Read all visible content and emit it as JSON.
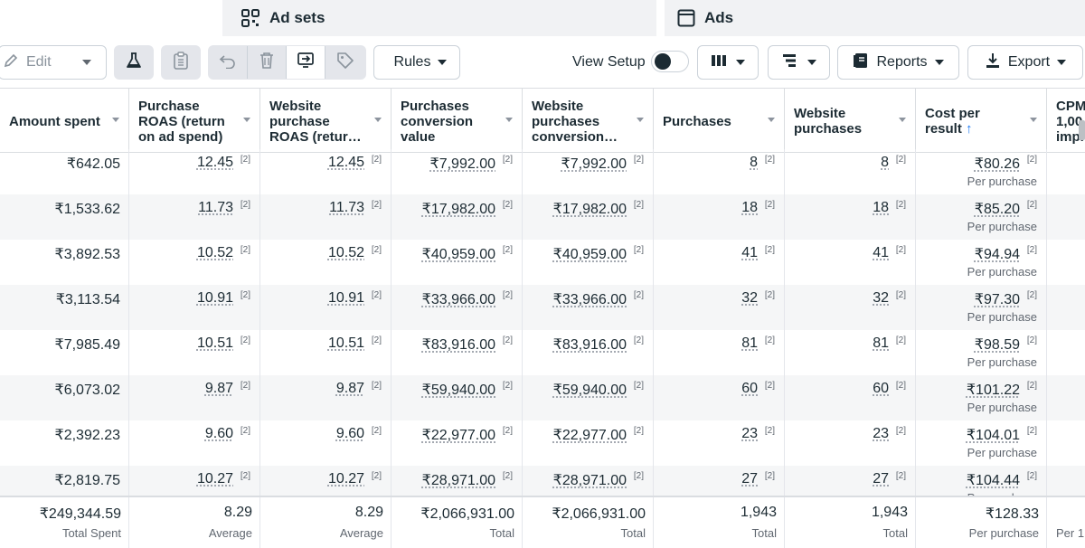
{
  "tabs": [
    {
      "label": "Ad sets",
      "icon": "grid-icon"
    },
    {
      "label": "Ads",
      "icon": "ad-window-icon"
    }
  ],
  "toolbar": {
    "edit_label": "Edit",
    "rules_label": "Rules",
    "view_setup_label": "View Setup",
    "view_setup_on": false,
    "reports_label": "Reports",
    "export_label": "Export"
  },
  "columns": [
    {
      "label": "Amount spent"
    },
    {
      "label": "Purchase ROAS (return on ad spend)"
    },
    {
      "label": "Website purchase ROAS (retur…"
    },
    {
      "label": "Purchases conversion value"
    },
    {
      "label": "Website purchases conversion…"
    },
    {
      "label": "Purchases"
    },
    {
      "label": "Website purchases"
    },
    {
      "label": "Cost per result",
      "sort_indicator": "↑"
    },
    {
      "label": "CPM 1,00 impr"
    }
  ],
  "footnote_marker": "[2]",
  "cost_sublabel": "Per purchase",
  "rows": [
    {
      "amount": "₹642.05",
      "roas": "12.45",
      "web_roas": "12.45",
      "conv_value": "₹7,992.00",
      "web_conv_value": "₹7,992.00",
      "purchases": "8",
      "web_purchases": "8",
      "cost": "₹80.26"
    },
    {
      "amount": "₹1,533.62",
      "roas": "11.73",
      "web_roas": "11.73",
      "conv_value": "₹17,982.00",
      "web_conv_value": "₹17,982.00",
      "purchases": "18",
      "web_purchases": "18",
      "cost": "₹85.20"
    },
    {
      "amount": "₹3,892.53",
      "roas": "10.52",
      "web_roas": "10.52",
      "conv_value": "₹40,959.00",
      "web_conv_value": "₹40,959.00",
      "purchases": "41",
      "web_purchases": "41",
      "cost": "₹94.94"
    },
    {
      "amount": "₹3,113.54",
      "roas": "10.91",
      "web_roas": "10.91",
      "conv_value": "₹33,966.00",
      "web_conv_value": "₹33,966.00",
      "purchases": "32",
      "web_purchases": "32",
      "cost": "₹97.30"
    },
    {
      "amount": "₹7,985.49",
      "roas": "10.51",
      "web_roas": "10.51",
      "conv_value": "₹83,916.00",
      "web_conv_value": "₹83,916.00",
      "purchases": "81",
      "web_purchases": "81",
      "cost": "₹98.59"
    },
    {
      "amount": "₹6,073.02",
      "roas": "9.87",
      "web_roas": "9.87",
      "conv_value": "₹59,940.00",
      "web_conv_value": "₹59,940.00",
      "purchases": "60",
      "web_purchases": "60",
      "cost": "₹101.22"
    },
    {
      "amount": "₹2,392.23",
      "roas": "9.60",
      "web_roas": "9.60",
      "conv_value": "₹22,977.00",
      "web_conv_value": "₹22,977.00",
      "purchases": "23",
      "web_purchases": "23",
      "cost": "₹104.01"
    },
    {
      "amount": "₹2,819.75",
      "roas": "10.27",
      "web_roas": "10.27",
      "conv_value": "₹28,971.00",
      "web_conv_value": "₹28,971.00",
      "purchases": "27",
      "web_purchases": "27",
      "cost": "₹104.44"
    }
  ],
  "totals": [
    {
      "value": "₹249,344.59",
      "label": "Total Spent"
    },
    {
      "value": "8.29",
      "label": "Average"
    },
    {
      "value": "8.29",
      "label": "Average"
    },
    {
      "value": "₹2,066,931.00",
      "label": "Total"
    },
    {
      "value": "₹2,066,931.00",
      "label": "Total"
    },
    {
      "value": "1,943",
      "label": "Total"
    },
    {
      "value": "1,943",
      "label": "Total"
    },
    {
      "value": "₹128.33",
      "label": "Per purchase"
    },
    {
      "value": "",
      "label": "Per 1,"
    }
  ]
}
